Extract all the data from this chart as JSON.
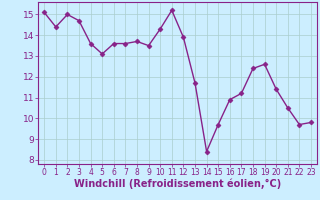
{
  "hours": [
    0,
    1,
    2,
    3,
    4,
    5,
    6,
    7,
    8,
    9,
    10,
    11,
    12,
    13,
    14,
    15,
    16,
    17,
    18,
    19,
    20,
    21,
    22,
    23
  ],
  "values": [
    15.1,
    14.4,
    15.0,
    14.7,
    13.6,
    13.1,
    13.6,
    13.6,
    13.7,
    13.5,
    14.3,
    15.2,
    13.9,
    11.7,
    8.4,
    9.7,
    10.9,
    11.2,
    12.4,
    12.6,
    11.4,
    10.5,
    9.7,
    9.8
  ],
  "line_color": "#882288",
  "marker": "D",
  "markersize": 2.5,
  "linewidth": 1.0,
  "xlabel": "Windchill (Refroidissement éolien,°C)",
  "xlabel_fontsize": 7,
  "ylim": [
    7.8,
    15.6
  ],
  "xlim": [
    -0.5,
    23.5
  ],
  "yticks": [
    8,
    9,
    10,
    11,
    12,
    13,
    14,
    15
  ],
  "xticks": [
    0,
    1,
    2,
    3,
    4,
    5,
    6,
    7,
    8,
    9,
    10,
    11,
    12,
    13,
    14,
    15,
    16,
    17,
    18,
    19,
    20,
    21,
    22,
    23
  ],
  "grid_color": "#aacece",
  "bg_color": "#cceeff",
  "tick_color": "#882288",
  "ytick_fontsize": 6.5,
  "xtick_fontsize": 5.5,
  "xlabel_color": "#882288",
  "spine_color": "#882288"
}
